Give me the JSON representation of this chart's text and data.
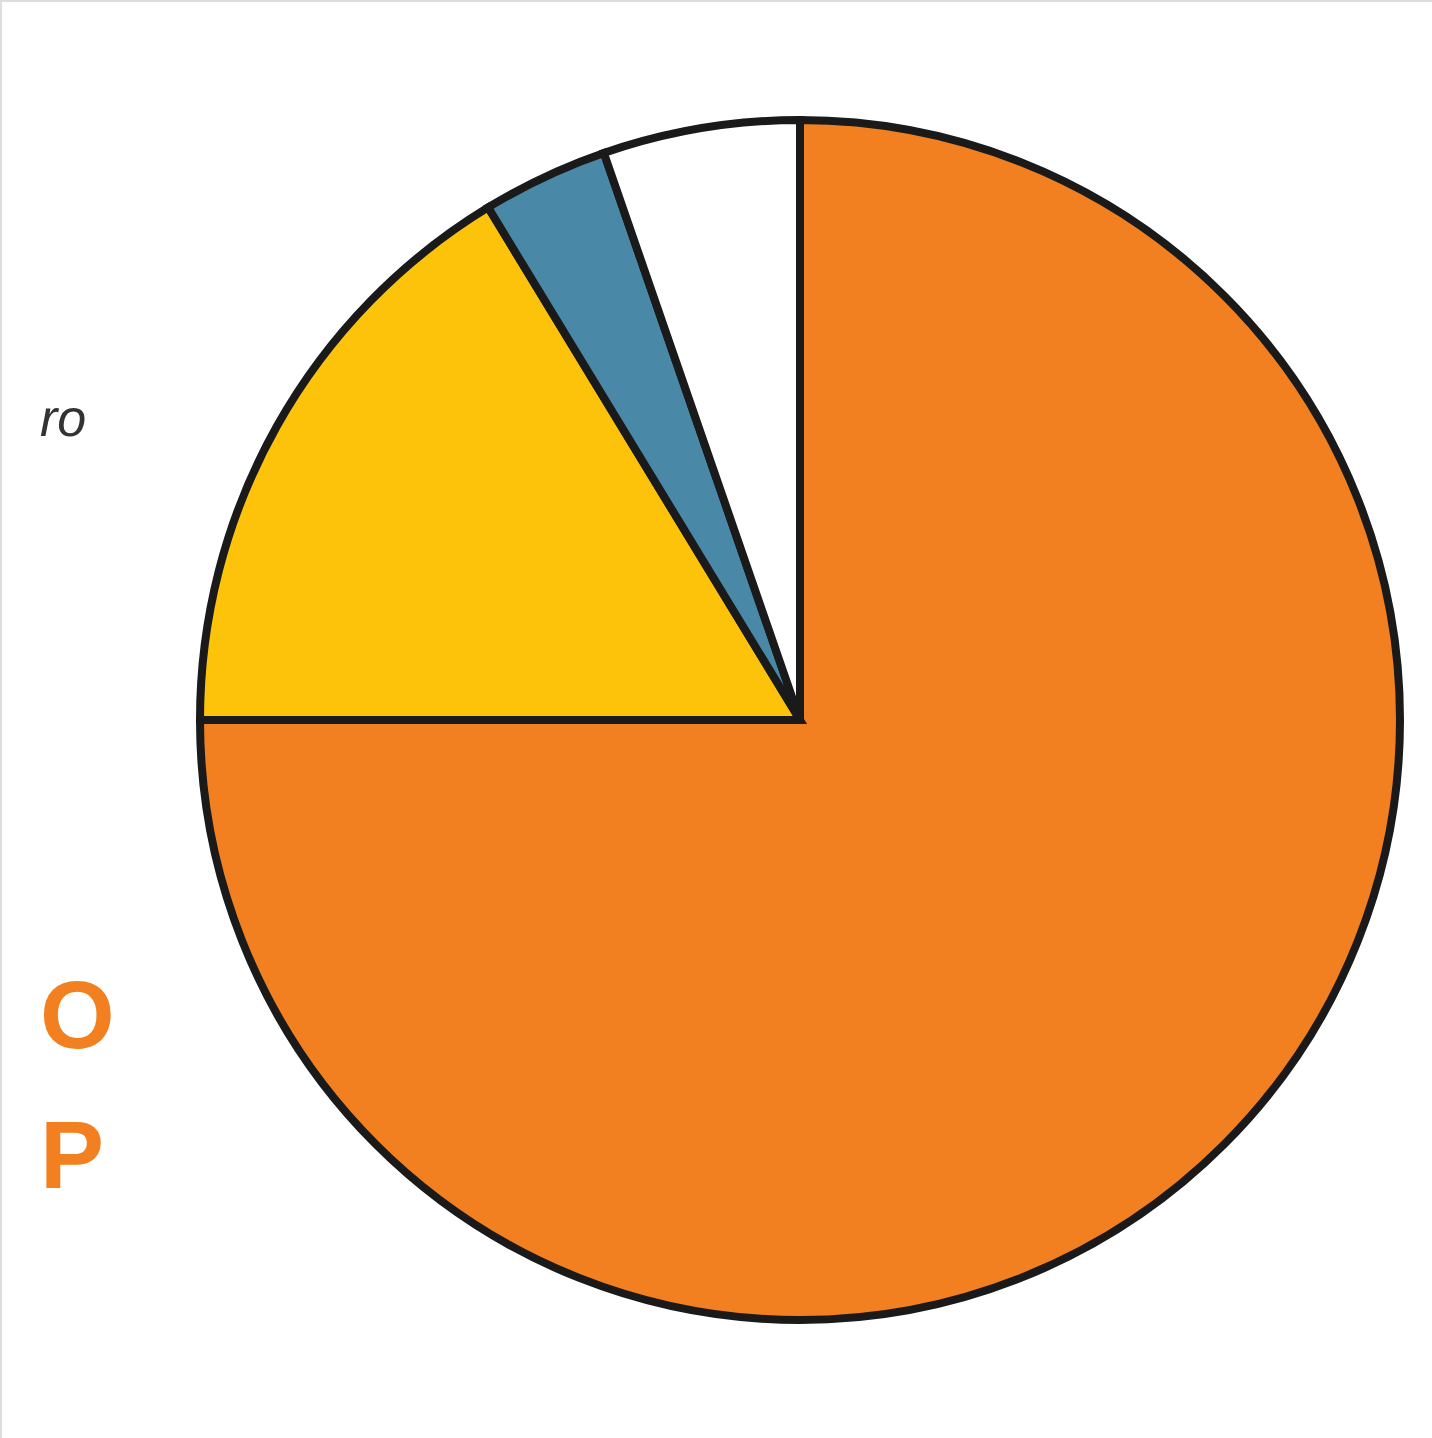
{
  "chart_data": {
    "type": "pie",
    "categories": [
      null,
      null,
      null,
      null
    ],
    "values": [
      75,
      16.3,
      3.4,
      5.3
    ],
    "colors": [
      "#f28020",
      "#fcc30a",
      "#4a88a8",
      "#ffffff"
    ],
    "annotations": [
      "ro",
      "O",
      "P"
    ]
  }
}
